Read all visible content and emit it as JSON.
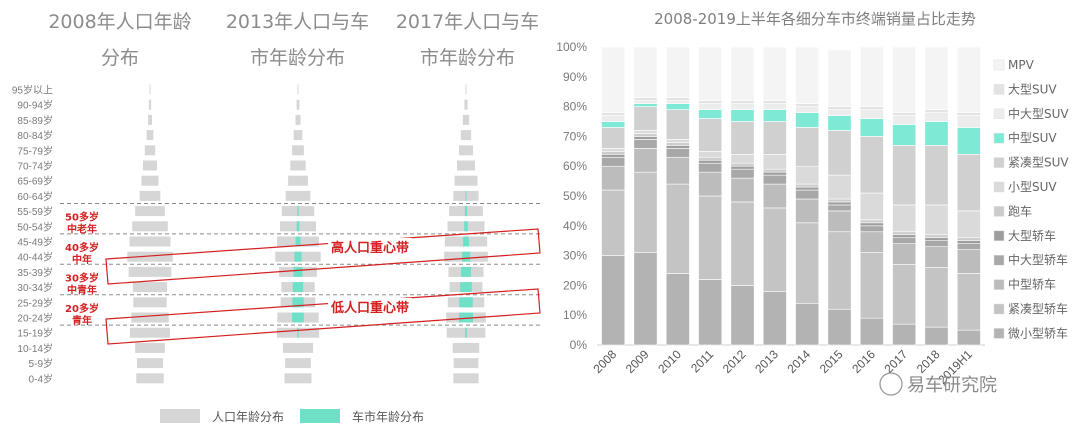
{
  "chart_data": [
    {
      "type": "bar",
      "orientation": "horizontal",
      "title_lines": [
        [
          "2008年人口年龄",
          "分布"
        ],
        [
          "2013年人口与车",
          "市年龄分布"
        ],
        [
          "2017年人口与车",
          "市年龄分布"
        ]
      ],
      "categories": [
        "95岁以上",
        "90-94岁",
        "85-89岁",
        "80-84岁",
        "75-79岁",
        "70-74岁",
        "65-69岁",
        "60-64岁",
        "55-59岁",
        "50-54岁",
        "45-49岁",
        "40-44岁",
        "35-39岁",
        "30-34岁",
        "25-29岁",
        "20-24岁",
        "15-19岁",
        "10-14岁",
        "5-9岁",
        "0-4岁"
      ],
      "series": [
        {
          "name": "人口年龄分布",
          "color": "#d6d6d6",
          "panels": [
            [
              0.2,
              0.5,
              0.9,
              1.5,
              2.3,
              3.1,
              3.8,
              4.6,
              6.6,
              7.9,
              9.1,
              10.1,
              9.5,
              7.6,
              7.4,
              8.3,
              8.9,
              6.6,
              5.8,
              6.1
            ],
            [
              0.2,
              0.6,
              1.1,
              1.9,
              2.6,
              3.4,
              4.4,
              5.5,
              7.2,
              8.0,
              9.3,
              10.1,
              8.4,
              7.4,
              7.7,
              9.2,
              9.4,
              6.7,
              5.7,
              6.0
            ],
            [
              0.2,
              0.7,
              1.4,
              2.3,
              3.1,
              4.0,
              5.1,
              5.6,
              7.5,
              8.2,
              9.4,
              9.7,
              7.8,
              7.3,
              8.1,
              8.8,
              8.6,
              5.9,
              5.5,
              5.6
            ]
          ]
        },
        {
          "name": "车市年龄分布",
          "color": "#6fe0c8",
          "panels": [
            [
              0,
              0,
              0,
              0,
              0,
              0,
              0,
              0,
              0,
              0,
              0,
              0,
              0,
              0,
              0,
              0,
              0,
              0,
              0,
              0
            ],
            [
              0,
              0,
              0,
              0,
              0,
              0,
              0,
              0,
              0.3,
              0.6,
              1.1,
              1.6,
              2.0,
              2.3,
              2.5,
              2.6,
              0.3,
              0,
              0,
              0
            ],
            [
              0,
              0,
              0,
              0,
              0,
              0,
              0,
              0.2,
              0.5,
              0.8,
              1.3,
              1.8,
              2.2,
              2.6,
              3.0,
              3.1,
              0.4,
              0,
              0,
              0
            ]
          ]
        }
      ],
      "annotations": {
        "left_labels": [
          [
            "50多岁",
            "中老年"
          ],
          [
            "40多岁",
            "中年"
          ],
          [
            "30多岁",
            "中青年"
          ],
          [
            "20多岁",
            "青年"
          ]
        ],
        "bands": [
          "高人口重心带",
          "低人口重心带"
        ]
      }
    },
    {
      "type": "bar",
      "stacked": true,
      "title": "2008-2019上半年各细分车市终端销量占比走势",
      "categories": [
        "2008",
        "2009",
        "2010",
        "2011",
        "2012",
        "2013",
        "2014",
        "2015",
        "2016",
        "2017",
        "2018",
        "2019H1"
      ],
      "ylim": [
        0,
        100
      ],
      "yticks": [
        "0%",
        "10%",
        "20%",
        "30%",
        "40%",
        "50%",
        "60%",
        "70%",
        "80%",
        "90%",
        "100%"
      ],
      "series": [
        {
          "name": "微小型轿车",
          "color": "#b3b3b3",
          "values": [
            30,
            31,
            24,
            22,
            20,
            18,
            14,
            12,
            9,
            7,
            6,
            5
          ]
        },
        {
          "name": "紧凑型轿车",
          "color": "#c4c4c4",
          "values": [
            22,
            27,
            30,
            28,
            28,
            28,
            27,
            26,
            22,
            20,
            20,
            19
          ]
        },
        {
          "name": "中型轿车",
          "color": "#bcbcbc",
          "values": [
            8,
            8,
            9,
            8,
            8,
            8,
            8,
            7,
            7,
            7,
            7,
            8
          ]
        },
        {
          "name": "中大型轿车",
          "color": "#a8a8a8",
          "values": [
            3,
            3,
            3,
            3,
            3,
            3,
            3,
            2,
            2,
            2,
            2,
            2
          ]
        },
        {
          "name": "大型轿车",
          "color": "#9e9e9e",
          "values": [
            1,
            1,
            1,
            1,
            1,
            1,
            1,
            1,
            1,
            1,
            1,
            1
          ]
        },
        {
          "name": "跑车",
          "color": "#cccccc",
          "values": [
            1,
            1,
            1,
            1,
            1,
            1,
            1,
            1,
            1,
            1,
            1,
            1
          ]
        },
        {
          "name": "小型SUV",
          "color": "#dadada",
          "values": [
            1,
            1,
            1,
            2,
            3,
            5,
            6,
            8,
            9,
            9,
            10,
            9
          ]
        },
        {
          "name": "紧凑型SUV",
          "color": "#d0d0d0",
          "values": [
            7,
            8,
            10,
            11,
            11,
            11,
            13,
            15,
            19,
            20,
            20,
            19
          ]
        },
        {
          "name": "中型SUV",
          "color": "#7eead6",
          "values": [
            2,
            1,
            2,
            3,
            4,
            4,
            5,
            5,
            6,
            7,
            8,
            9
          ]
        },
        {
          "name": "中大型SUV",
          "color": "#ececec",
          "values": [
            2,
            1,
            1,
            2,
            2,
            2,
            2,
            2,
            3,
            3,
            3,
            4
          ]
        },
        {
          "name": "大型SUV",
          "color": "#e3e3e3",
          "values": [
            1,
            1,
            1,
            1,
            1,
            1,
            1,
            1,
            1,
            1,
            1,
            1
          ]
        },
        {
          "name": "MPV",
          "color": "#f4f4f4",
          "values": [
            22,
            17,
            17,
            18,
            18,
            18,
            19,
            19,
            20,
            22,
            21,
            22
          ]
        }
      ]
    }
  ],
  "watermark": "易车研究院"
}
